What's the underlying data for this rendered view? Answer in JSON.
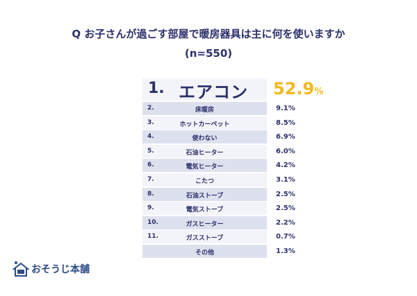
{
  "chart_data": {
    "type": "table",
    "title": "Q お子さんが過ごす部屋で暖房器具は主に何を使いますか",
    "subtitle": "(n=550)",
    "rows": [
      {
        "rank": "1.",
        "label": "エアコン",
        "value": "52.9",
        "unit": "%"
      },
      {
        "rank": "2.",
        "label": "床暖房",
        "value": "9.1%"
      },
      {
        "rank": "3.",
        "label": "ホットカーペット",
        "value": "8.5%"
      },
      {
        "rank": "4.",
        "label": "使わない",
        "value": "6.9%"
      },
      {
        "rank": "5.",
        "label": "石油ヒーター",
        "value": "6.0%"
      },
      {
        "rank": "6.",
        "label": "電気ヒーター",
        "value": "4.2%"
      },
      {
        "rank": "7.",
        "label": "こたつ",
        "value": "3.1%"
      },
      {
        "rank": "8.",
        "label": "石油ストーブ",
        "value": "2.5%"
      },
      {
        "rank": "9.",
        "label": "電気ストーブ",
        "value": "2.5%"
      },
      {
        "rank": "10.",
        "label": "ガスヒーター",
        "value": "2.2%"
      },
      {
        "rank": "11.",
        "label": "ガスストーブ",
        "value": "0.7%"
      },
      {
        "rank": "",
        "label": "その他",
        "value": "1.3%"
      }
    ],
    "colors": {
      "text": "#2b2f6b",
      "highlight": "#f2b81e",
      "shade": "#dde1ee"
    }
  },
  "logo": {
    "text": "おそうじ本舗"
  }
}
